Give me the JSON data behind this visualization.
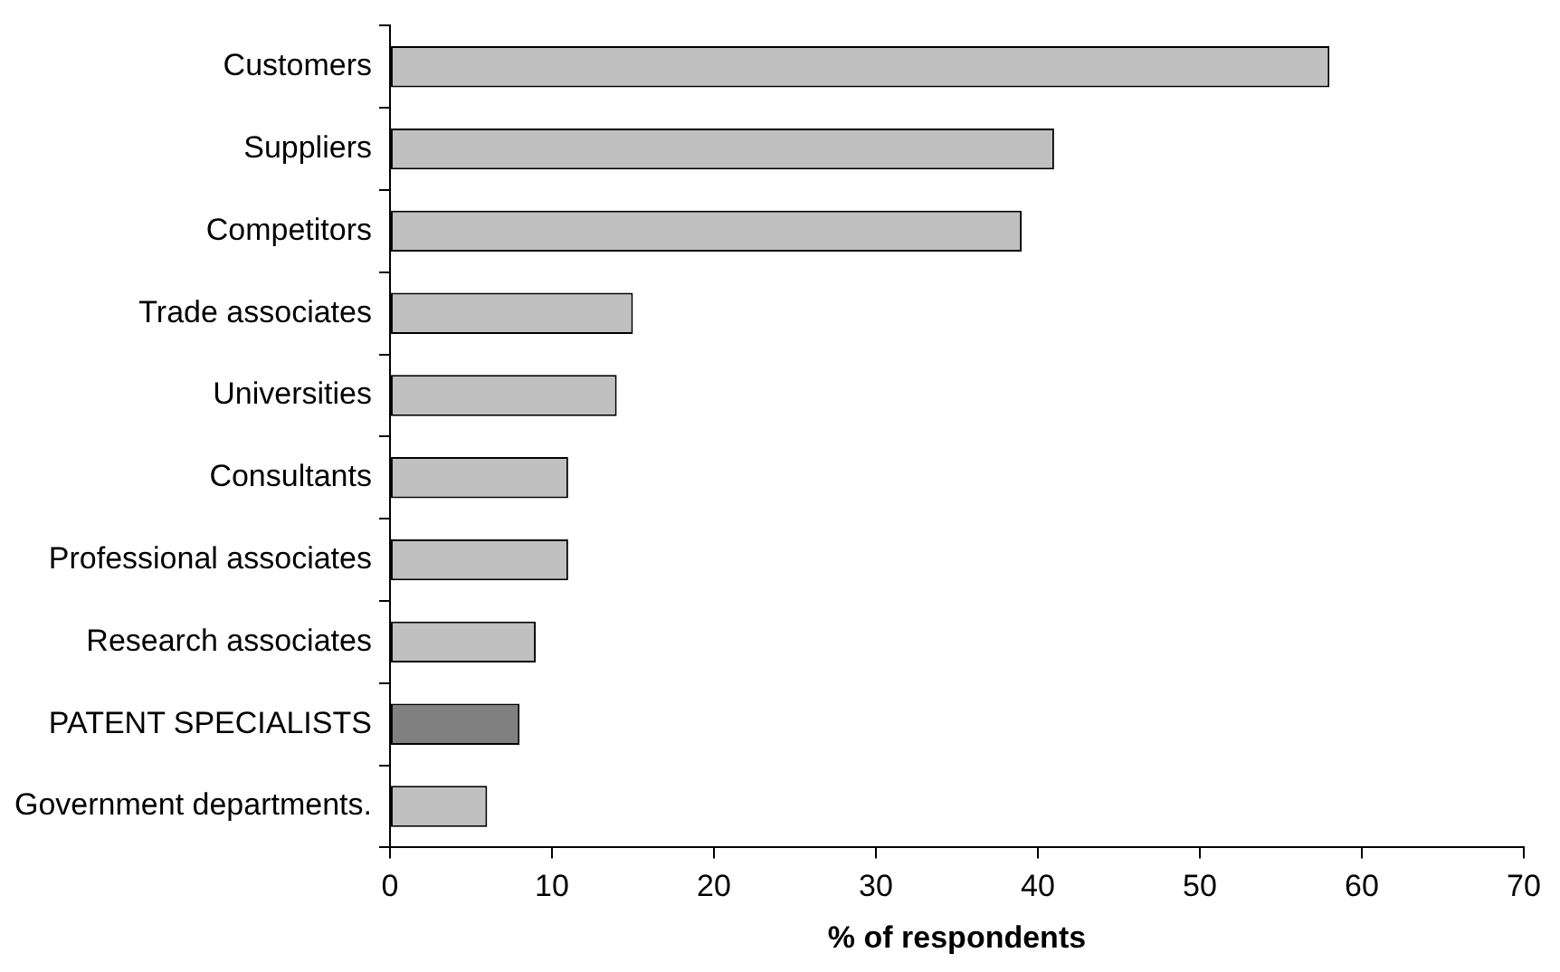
{
  "chart_data": {
    "type": "bar",
    "orientation": "horizontal",
    "xlabel": "% of respondents",
    "categories": [
      "Customers",
      "Suppliers",
      "Competitors",
      "Trade associates",
      "Universities",
      "Consultants",
      "Professional associates",
      "Research associates",
      "PATENT SPECIALISTS",
      "Government departments."
    ],
    "values": [
      58,
      41,
      39,
      15,
      14,
      11,
      11,
      9,
      8,
      6
    ],
    "colors": [
      "#c0c0c0",
      "#c0c0c0",
      "#c0c0c0",
      "#c0c0c0",
      "#c0c0c0",
      "#c0c0c0",
      "#c0c0c0",
      "#c0c0c0",
      "#808080",
      "#c0c0c0"
    ],
    "xlim": [
      0,
      70
    ],
    "xticks": [
      0,
      10,
      20,
      30,
      40,
      50,
      60,
      70
    ],
    "grid": false,
    "legend": false
  }
}
